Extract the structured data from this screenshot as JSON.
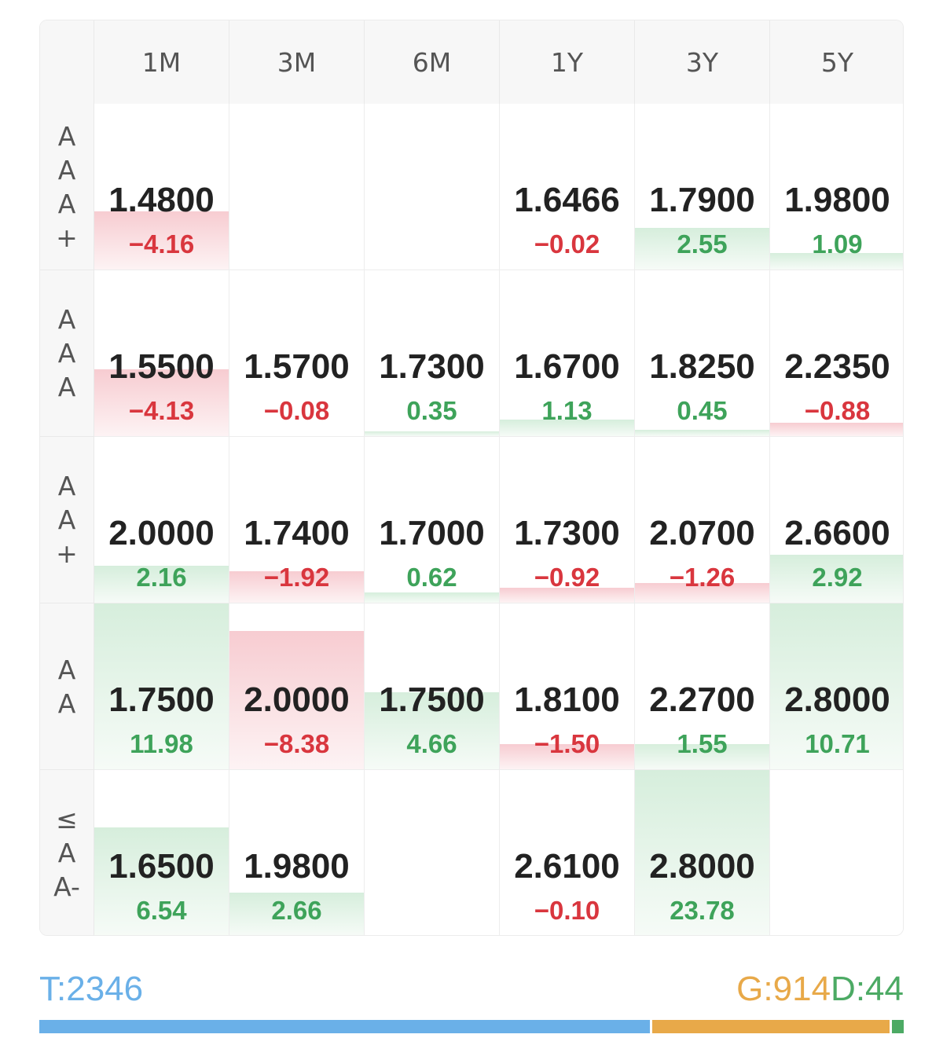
{
  "columns": [
    "1M",
    "3M",
    "6M",
    "1Y",
    "3Y",
    "5Y"
  ],
  "rows": [
    {
      "label": "AAA+",
      "cells": [
        {
          "value": "1.4800",
          "change": "−4.16",
          "level": -0.35
        },
        null,
        null,
        {
          "value": "1.6466",
          "change": "−0.02",
          "level": 0
        },
        {
          "value": "1.7900",
          "change": "2.55",
          "level": 0.25
        },
        {
          "value": "1.9800",
          "change": "1.09",
          "level": 0.1
        }
      ]
    },
    {
      "label": "AAA",
      "cells": [
        {
          "value": "1.5500",
          "change": "−4.13",
          "level": -0.4
        },
        {
          "value": "1.5700",
          "change": "−0.08",
          "level": 0
        },
        {
          "value": "1.7300",
          "change": "0.35",
          "level": 0.03
        },
        {
          "value": "1.6700",
          "change": "1.13",
          "level": 0.1
        },
        {
          "value": "1.8250",
          "change": "0.45",
          "level": 0.04
        },
        {
          "value": "2.2350",
          "change": "−0.88",
          "level": -0.08
        }
      ]
    },
    {
      "label": "AA+",
      "cells": [
        {
          "value": "2.0000",
          "change": "2.16",
          "level": 0.22
        },
        {
          "value": "1.7400",
          "change": "−1.92",
          "level": -0.19
        },
        {
          "value": "1.7000",
          "change": "0.62",
          "level": 0.06
        },
        {
          "value": "1.7300",
          "change": "−0.92",
          "level": -0.09
        },
        {
          "value": "2.0700",
          "change": "−1.26",
          "level": -0.12
        },
        {
          "value": "2.6600",
          "change": "2.92",
          "level": 0.29
        }
      ]
    },
    {
      "label": "AA",
      "cells": [
        {
          "value": "1.7500",
          "change": "11.98",
          "level": 1.0
        },
        {
          "value": "2.0000",
          "change": "−8.38",
          "level": -0.83
        },
        {
          "value": "1.7500",
          "change": "4.66",
          "level": 0.46
        },
        {
          "value": "1.8100",
          "change": "−1.50",
          "level": -0.15
        },
        {
          "value": "2.2700",
          "change": "1.55",
          "level": 0.15
        },
        {
          "value": "2.8000",
          "change": "10.71",
          "level": 1.0
        }
      ]
    },
    {
      "label": "≤AA-",
      "cells": [
        {
          "value": "1.6500",
          "change": "6.54",
          "level": 0.65
        },
        {
          "value": "1.9800",
          "change": "2.66",
          "level": 0.26
        },
        null,
        {
          "value": "2.6100",
          "change": "−0.10",
          "level": 0
        },
        {
          "value": "2.8000",
          "change": "23.78",
          "level": 1.0
        },
        null
      ]
    }
  ],
  "footer": {
    "total": "T:2346",
    "gray": "G:914",
    "defaults": "D:44",
    "bar": [
      {
        "name": "total",
        "value": 2346,
        "color": "#6ab0e8"
      },
      {
        "name": "gray",
        "value": 914,
        "color": "#e8a949"
      },
      {
        "name": "defaults",
        "value": 44,
        "color": "#4caa64"
      }
    ]
  }
}
